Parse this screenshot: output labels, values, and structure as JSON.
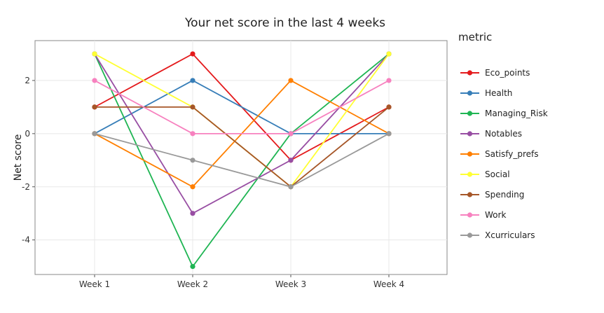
{
  "chart_data": {
    "type": "line",
    "title": "Your net score in the last 4 weeks",
    "xlabel": "",
    "ylabel": "Net score",
    "categories": [
      "Week 1",
      "Week 2",
      "Week 3",
      "Week 4"
    ],
    "ylim": [
      -5.3,
      3.5
    ],
    "yticks": [
      -4,
      -2,
      0,
      2
    ],
    "yticklabels": [
      "-4",
      "-2",
      "0",
      "2"
    ],
    "grid": true,
    "legend": {
      "title": "metric",
      "placement": "right"
    },
    "series": [
      {
        "name": "Eco_points",
        "color": "#e41a1c",
        "values": [
          1,
          3,
          -1,
          1
        ]
      },
      {
        "name": "Health",
        "color": "#377eb8",
        "values": [
          0,
          2,
          0,
          0
        ]
      },
      {
        "name": "Managing_Risk",
        "color": "#1fb553",
        "values": [
          3,
          -5,
          0,
          3
        ]
      },
      {
        "name": "Notables",
        "color": "#984ea3",
        "values": [
          3,
          -3,
          -1,
          3
        ]
      },
      {
        "name": "Satisfy_prefs",
        "color": "#ff7f00",
        "values": [
          0,
          -2,
          2,
          0
        ]
      },
      {
        "name": "Social",
        "color": "#ffff33",
        "values": [
          3,
          1,
          -2,
          3
        ]
      },
      {
        "name": "Spending",
        "color": "#a65628",
        "values": [
          1,
          1,
          -2,
          1
        ]
      },
      {
        "name": "Work",
        "color": "#f781bf",
        "values": [
          2,
          0,
          0,
          2
        ]
      },
      {
        "name": "Xcurriculars",
        "color": "#999999",
        "values": [
          0,
          -1,
          -2,
          0
        ]
      }
    ]
  }
}
